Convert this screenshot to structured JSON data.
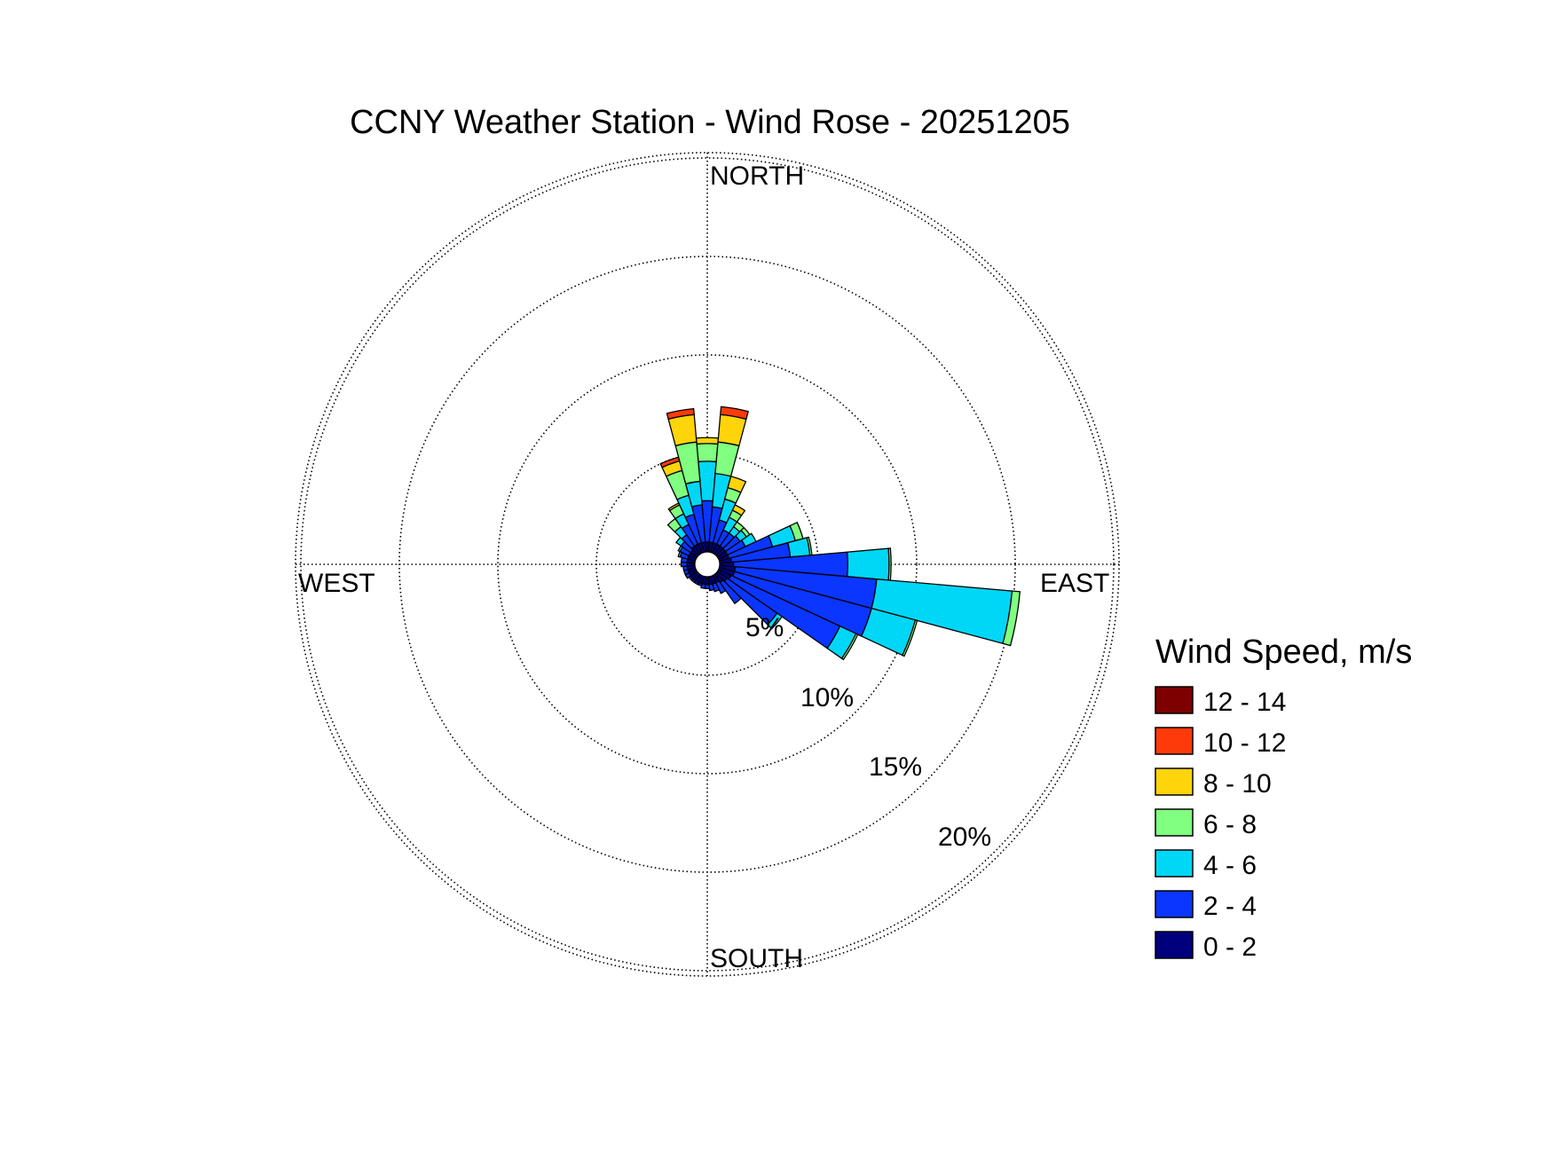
{
  "chart_data": {
    "type": "wind-rose",
    "title": "CCNY Weather Station - Wind Rose - 20251205",
    "direction_labels": {
      "north": "NORTH",
      "east": "EAST",
      "south": "SOUTH",
      "west": "WEST"
    },
    "radial_ticks": [
      {
        "value": 5,
        "label": "5%"
      },
      {
        "value": 10,
        "label": "10%"
      },
      {
        "value": 15,
        "label": "15%"
      },
      {
        "value": 20,
        "label": "20%"
      }
    ],
    "radial_max": 20,
    "grid": true,
    "legend": {
      "title": "Wind Speed, m/s",
      "placement": "right",
      "bins": [
        {
          "label": "12 - 14",
          "color": "#7f0000"
        },
        {
          "label": "10 - 12",
          "color": "#ff3a0a"
        },
        {
          "label": "8 - 10",
          "color": "#ffd40a"
        },
        {
          "label": "6 - 8",
          "color": "#80ff80"
        },
        {
          "label": "4 - 6",
          "color": "#00d7f7"
        },
        {
          "label": "2 - 4",
          "color": "#0a36ff"
        },
        {
          "label": "0 - 2",
          "color": "#00007f"
        }
      ]
    },
    "bin_order_inner_to_outer": [
      "0 - 2",
      "2 - 4",
      "4 - 6",
      "6 - 8",
      "8 - 10",
      "10 - 12",
      "12 - 14"
    ],
    "sector_width_deg": 10,
    "sectors": [
      {
        "direction_deg": 0,
        "cumulative_percent": [
          0.5,
          2.6,
          4.6,
          5.5,
          5.8
        ]
      },
      {
        "direction_deg": 10,
        "cumulative_percent": [
          0.5,
          2.3,
          4.0,
          5.6,
          7.0,
          7.4
        ]
      },
      {
        "direction_deg": 20,
        "cumulative_percent": [
          0.5,
          1.7,
          2.8,
          3.4,
          4.0
        ]
      },
      {
        "direction_deg": 30,
        "cumulative_percent": [
          0.5,
          1.3,
          2.0,
          2.4,
          2.7
        ]
      },
      {
        "direction_deg": 40,
        "cumulative_percent": [
          0.5,
          1.3,
          1.7,
          2.0
        ]
      },
      {
        "direction_deg": 50,
        "cumulative_percent": [
          0.5,
          1.4,
          1.8,
          2.0
        ]
      },
      {
        "direction_deg": 60,
        "cumulative_percent": [
          0.5,
          1.5,
          2.1
        ]
      },
      {
        "direction_deg": 70,
        "cumulative_percent": [
          0.5,
          2.8,
          4.0,
          4.4
        ]
      },
      {
        "direction_deg": 80,
        "cumulative_percent": [
          0.6,
          3.6,
          4.6,
          4.7
        ]
      },
      {
        "direction_deg": 90,
        "cumulative_percent": [
          0.7,
          6.5,
          8.6,
          8.7
        ]
      },
      {
        "direction_deg": 100,
        "cumulative_percent": [
          0.8,
          8.0,
          14.9,
          15.3
        ]
      },
      {
        "direction_deg": 110,
        "cumulative_percent": [
          0.8,
          8.0,
          10.3,
          10.4
        ]
      },
      {
        "direction_deg": 120,
        "cumulative_percent": [
          0.7,
          6.8,
          7.7,
          7.8
        ]
      },
      {
        "direction_deg": 130,
        "cumulative_percent": [
          0.6,
          3.7,
          4.0
        ]
      },
      {
        "direction_deg": 140,
        "cumulative_percent": [
          0.5,
          1.8
        ]
      },
      {
        "direction_deg": 150,
        "cumulative_percent": [
          0.4,
          1.0
        ]
      },
      {
        "direction_deg": 160,
        "cumulative_percent": [
          0.4,
          0.8
        ]
      },
      {
        "direction_deg": 170,
        "cumulative_percent": [
          0.4,
          0.7
        ]
      },
      {
        "direction_deg": 180,
        "cumulative_percent": [
          0.4,
          0.6
        ]
      },
      {
        "direction_deg": 190,
        "cumulative_percent": [
          0.4,
          0.6
        ]
      },
      {
        "direction_deg": 200,
        "cumulative_percent": [
          0.4,
          0.5
        ]
      },
      {
        "direction_deg": 210,
        "cumulative_percent": [
          0.4,
          0.5
        ]
      },
      {
        "direction_deg": 220,
        "cumulative_percent": [
          0.4,
          0.5
        ]
      },
      {
        "direction_deg": 230,
        "cumulative_percent": [
          0.4,
          0.5
        ]
      },
      {
        "direction_deg": 240,
        "cumulative_percent": [
          0.4,
          0.6
        ]
      },
      {
        "direction_deg": 250,
        "cumulative_percent": [
          0.4,
          0.6
        ]
      },
      {
        "direction_deg": 260,
        "cumulative_percent": [
          0.4,
          0.6
        ]
      },
      {
        "direction_deg": 270,
        "cumulative_percent": [
          0.4,
          0.7
        ]
      },
      {
        "direction_deg": 280,
        "cumulative_percent": [
          0.4,
          0.7
        ]
      },
      {
        "direction_deg": 290,
        "cumulative_percent": [
          0.4,
          0.8,
          0.9
        ]
      },
      {
        "direction_deg": 300,
        "cumulative_percent": [
          0.4,
          0.9,
          1.0
        ]
      },
      {
        "direction_deg": 310,
        "cumulative_percent": [
          0.4,
          1.0,
          1.3
        ]
      },
      {
        "direction_deg": 320,
        "cumulative_percent": [
          0.5,
          1.2,
          1.7,
          2.2
        ]
      },
      {
        "direction_deg": 330,
        "cumulative_percent": [
          0.5,
          1.6,
          2.2,
          2.7,
          2.8
        ]
      },
      {
        "direction_deg": 340,
        "cumulative_percent": [
          0.5,
          2.0,
          3.0,
          4.3,
          4.8,
          5.0
        ]
      },
      {
        "direction_deg": 350,
        "cumulative_percent": [
          0.5,
          2.4,
          3.6,
          5.6,
          7.0,
          7.3
        ]
      }
    ]
  }
}
